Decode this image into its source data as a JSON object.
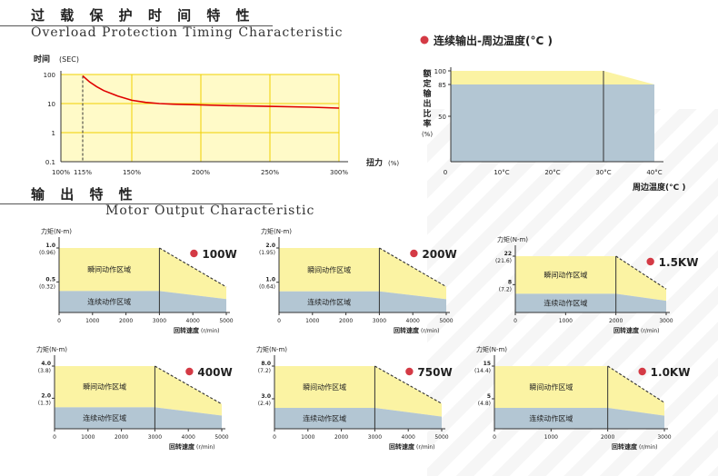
{
  "headers": {
    "overload_cn": "过 载 保 护 时 间 特 性",
    "overload_en": "Overload Protection Timing Characteristic",
    "motor_cn": "输 出 特 性",
    "motor_en": "Motor Output Characteristic"
  },
  "colors": {
    "peak_region": "#fbf3a3",
    "rated_region": "#b3c6d3",
    "overload_curve": "#e00000",
    "overload_grid": "#f0d000",
    "bullet": "#d43a45",
    "axis": "#333333"
  },
  "chart_data": [
    {
      "id": "overload",
      "type": "line",
      "xlabel": "扭力",
      "xunit": "(%)",
      "ylabel": "时间",
      "yunit": "(SEC)",
      "yscale": "log",
      "xlim": [
        100,
        300
      ],
      "ylim": [
        0.1,
        100
      ],
      "x_ticks": [
        "100%",
        "115%",
        "150%",
        "200%",
        "250%",
        "300%"
      ],
      "x_tick_values": [
        100,
        115,
        150,
        200,
        250,
        300
      ],
      "y_ticks": [
        "100",
        "10",
        "1",
        "0.1"
      ],
      "y_tick_values": [
        100,
        10,
        1,
        0.1
      ],
      "grid": true,
      "series": [
        {
          "x": [
            115,
            120,
            125,
            130,
            140,
            150,
            160,
            170,
            180,
            200,
            220,
            250,
            280,
            300
          ],
          "y": [
            90,
            55,
            38,
            28,
            18,
            13,
            11,
            10,
            9.5,
            9,
            8.5,
            8,
            7.5,
            7
          ]
        }
      ]
    },
    {
      "id": "derating",
      "type": "area",
      "title": "连续输出-周边温度(°C )",
      "ylabel": "额定输出比率",
      "yunit": "(%)",
      "xlabel": "周边温度(°C )",
      "x_ticks": [
        "0",
        "10°C",
        "20°C",
        "30°C",
        "40°C"
      ],
      "x_tick_values": [
        0,
        10,
        20,
        30,
        40
      ],
      "y_ticks": [
        "100",
        "85",
        "50"
      ],
      "y_tick_values": [
        100,
        85,
        50
      ],
      "xlim": [
        0,
        40
      ],
      "ylim": [
        0,
        100
      ],
      "peak_top": 100,
      "rated_level": 85,
      "break_x": 30
    },
    {
      "id": "m100",
      "type": "area",
      "model": "100W",
      "ylabel": "力矩(N-m)",
      "xlabel": "回转速度",
      "xunit": "(r/min)",
      "x_ticks": [
        0,
        1000,
        2000,
        3000,
        4000,
        5000
      ],
      "xlim": [
        0,
        5000
      ],
      "y_ticks": [
        {
          "v": 1.0,
          "label": "1.0",
          "sub": "(0.96)"
        },
        {
          "v": 0.5,
          "label": "0.5",
          "sub": "(0.32)"
        }
      ],
      "ylim": [
        0,
        1.15
      ],
      "peak_torque": 0.96,
      "rated_torque": 0.32,
      "rated_speed": 3000,
      "max_speed": 5000,
      "peak_end_torque": 0.38,
      "rated_end_torque": 0.2,
      "peak_label": "瞬间动作区域",
      "rated_label": "连续动作区域"
    },
    {
      "id": "m200",
      "type": "area",
      "model": "200W",
      "ylabel": "力矩(N-m)",
      "xlabel": "回转速度",
      "xunit": "(r/min)",
      "x_ticks": [
        0,
        1000,
        2000,
        3000,
        4000,
        5000
      ],
      "xlim": [
        0,
        5000
      ],
      "y_ticks": [
        {
          "v": 2.0,
          "label": "2.0",
          "sub": "(1.95)"
        },
        {
          "v": 1.0,
          "label": "1.0",
          "sub": "(0.64)"
        }
      ],
      "ylim": [
        0,
        2.3
      ],
      "peak_torque": 1.95,
      "rated_torque": 0.64,
      "rated_speed": 3000,
      "max_speed": 5000,
      "peak_end_torque": 0.78,
      "rated_end_torque": 0.4,
      "peak_label": "瞬间动作区域",
      "rated_label": "连续动作区域"
    },
    {
      "id": "m1500",
      "type": "area",
      "model": "1.5KW",
      "ylabel": "力矩(N-m)",
      "xlabel": "回转速度",
      "xunit": "(r/min)",
      "x_ticks": [
        0,
        1000,
        2000,
        3000
      ],
      "xlim": [
        0,
        3000
      ],
      "y_ticks": [
        {
          "v": 22,
          "label": "22",
          "sub": "(21.6)"
        },
        {
          "v": 8,
          "label": "8",
          "sub": "(7.2)"
        }
      ],
      "ylim": [
        0,
        25
      ],
      "peak_torque": 21.6,
      "rated_torque": 7.2,
      "rated_speed": 2000,
      "max_speed": 3000,
      "peak_end_torque": 9,
      "rated_end_torque": 4.5,
      "peak_label": "瞬间动作区域",
      "rated_label": "连续动作区域"
    },
    {
      "id": "m400",
      "type": "area",
      "model": "400W",
      "ylabel": "力矩(N-m)",
      "xlabel": "回转速度",
      "xunit": "(r/min)",
      "x_ticks": [
        0,
        1000,
        2000,
        3000,
        4000,
        5000
      ],
      "xlim": [
        0,
        5000
      ],
      "y_ticks": [
        {
          "v": 4.0,
          "label": "4.0",
          "sub": "(3.8)"
        },
        {
          "v": 2.0,
          "label": "2.0",
          "sub": "(1.3)"
        }
      ],
      "ylim": [
        0,
        4.5
      ],
      "peak_torque": 3.8,
      "rated_torque": 1.3,
      "rated_speed": 3000,
      "max_speed": 5000,
      "peak_end_torque": 1.5,
      "rated_end_torque": 0.8,
      "peak_label": "瞬间动作区域",
      "rated_label": "连续动作区域"
    },
    {
      "id": "m750",
      "type": "area",
      "model": "750W",
      "ylabel": "力矩(N-m)",
      "xlabel": "回转速度",
      "xunit": "(r/min)",
      "x_ticks": [
        0,
        1000,
        2000,
        3000,
        4000,
        5000
      ],
      "xlim": [
        0,
        5000
      ],
      "y_ticks": [
        {
          "v": 8.0,
          "label": "8.0",
          "sub": "(7.2)"
        },
        {
          "v": 3.0,
          "label": "3.0",
          "sub": "(2.4)"
        }
      ],
      "ylim": [
        0,
        8.5
      ],
      "peak_torque": 7.2,
      "rated_torque": 2.4,
      "rated_speed": 3000,
      "max_speed": 5000,
      "peak_end_torque": 2.9,
      "rated_end_torque": 1.4,
      "peak_label": "瞬间动作区域",
      "rated_label": "连续动作区域"
    },
    {
      "id": "m1000",
      "type": "area",
      "model": "1.0KW",
      "ylabel": "力矩(N-m)",
      "xlabel": "回转速度",
      "xunit": "(r/min)",
      "x_ticks": [
        0,
        1000,
        2000,
        3000
      ],
      "xlim": [
        0,
        3000
      ],
      "y_ticks": [
        {
          "v": 15,
          "label": "15",
          "sub": "(14.4)"
        },
        {
          "v": 5,
          "label": "5",
          "sub": "(4.8)"
        }
      ],
      "ylim": [
        0,
        16.5
      ],
      "peak_torque": 14.4,
      "rated_torque": 4.8,
      "rated_speed": 2000,
      "max_speed": 3000,
      "peak_end_torque": 6,
      "rated_end_torque": 3,
      "peak_label": "瞬间动作区域",
      "rated_label": "连续动作区域"
    }
  ]
}
